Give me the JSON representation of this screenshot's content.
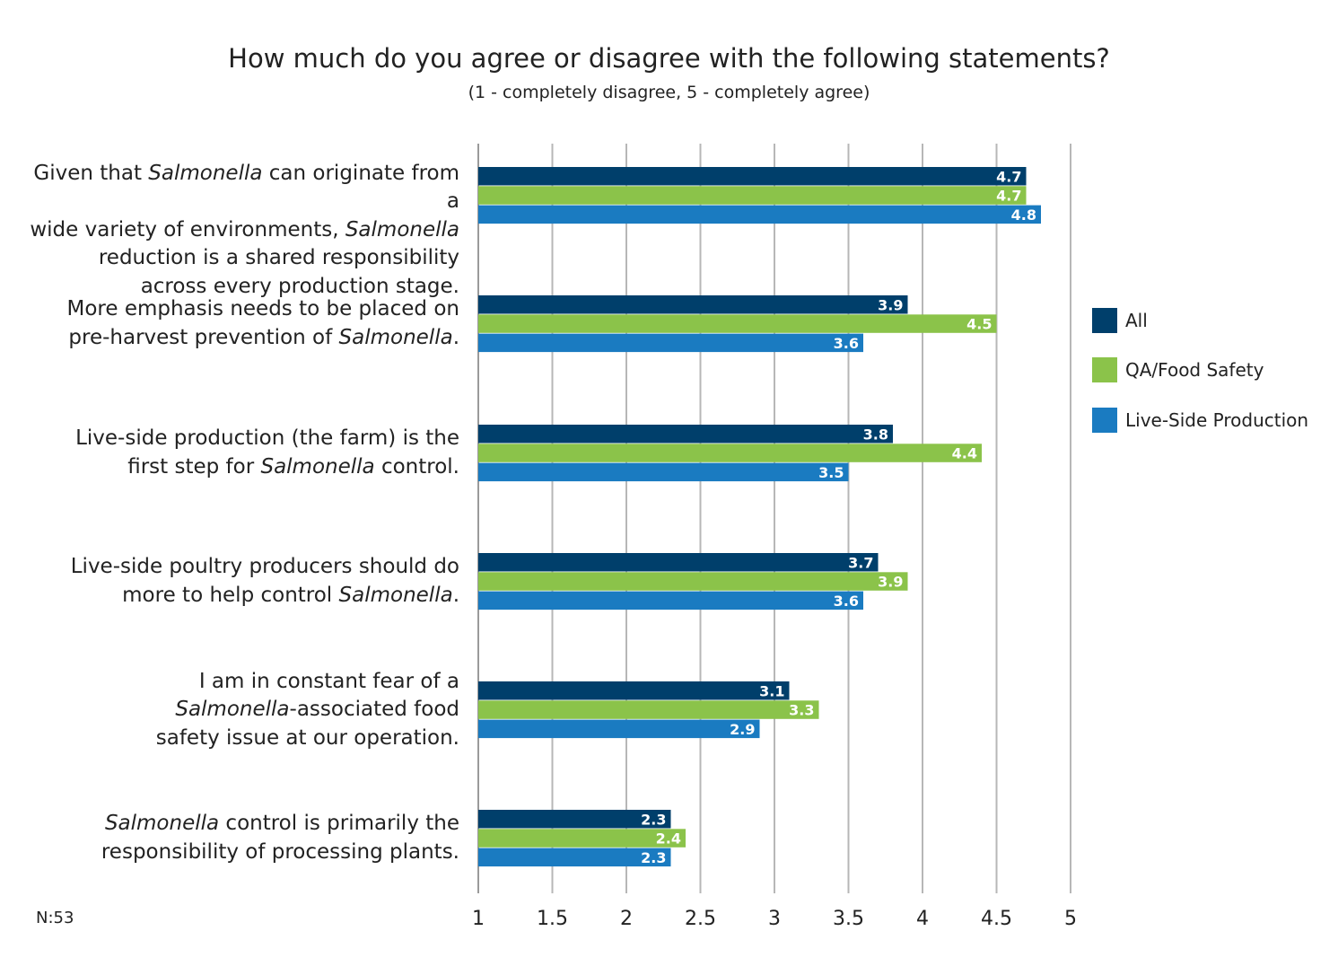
{
  "chart_data": {
    "type": "bar",
    "orientation": "horizontal",
    "title": "How much do you agree or disagree with the following statements?",
    "subtitle": "(1 - completely disagree, 5 - completely agree)",
    "note": "N:53",
    "xlim": [
      1,
      5
    ],
    "xticks": [
      "1",
      "1.5",
      "2",
      "2.5",
      "3",
      "3.5",
      "4",
      "4.5",
      "5"
    ],
    "grid": true,
    "legend_position": "right",
    "categories": [
      [
        "Given that ",
        {
          "i": "Salmonella"
        },
        " can originate from a",
        "\n",
        "wide variety of environments, ",
        {
          "i": "Salmonella"
        },
        "\n",
        "reduction is a shared responsibility",
        "\n",
        "across every production stage."
      ],
      [
        "More emphasis needs to be placed on",
        "\n",
        "pre-harvest prevention of ",
        {
          "i": "Salmonella"
        },
        "."
      ],
      [
        "Live-side production (the farm) is the",
        "\n",
        "first step for ",
        {
          "i": "Salmonella"
        },
        " control."
      ],
      [
        "Live-side poultry producers should do",
        "\n",
        "more to help control ",
        {
          "i": "Salmonella"
        },
        "."
      ],
      [
        "I am in constant fear of a",
        "\n",
        {
          "i": "Salmonella"
        },
        "-associated food",
        "\n",
        "safety issue at our operation."
      ],
      [
        {
          "i": "Salmonella"
        },
        " control is primarily the",
        "\n",
        "responsibility of processing plants."
      ]
    ],
    "series": [
      {
        "name": "All",
        "color": "#003f6b",
        "values": [
          4.7,
          3.9,
          3.8,
          3.7,
          3.1,
          2.3
        ],
        "labels": [
          "4.7",
          "3.9",
          "3.8",
          "3.7",
          "3.1",
          "2.3"
        ]
      },
      {
        "name": "QA/Food Safety",
        "color": "#8bc34a",
        "values": [
          4.7,
          4.5,
          4.4,
          3.9,
          3.3,
          2.4
        ],
        "labels": [
          "4.7",
          "4.5",
          "4.4",
          "3.9",
          "3.3",
          "2.4"
        ]
      },
      {
        "name": "Live-Side Production",
        "color": "#1a7bc1",
        "values": [
          4.8,
          3.6,
          3.5,
          3.6,
          2.9,
          2.3
        ],
        "labels": [
          "4.8",
          "3.6",
          "3.5",
          "3.6",
          "2.9",
          "2.3"
        ]
      }
    ]
  }
}
